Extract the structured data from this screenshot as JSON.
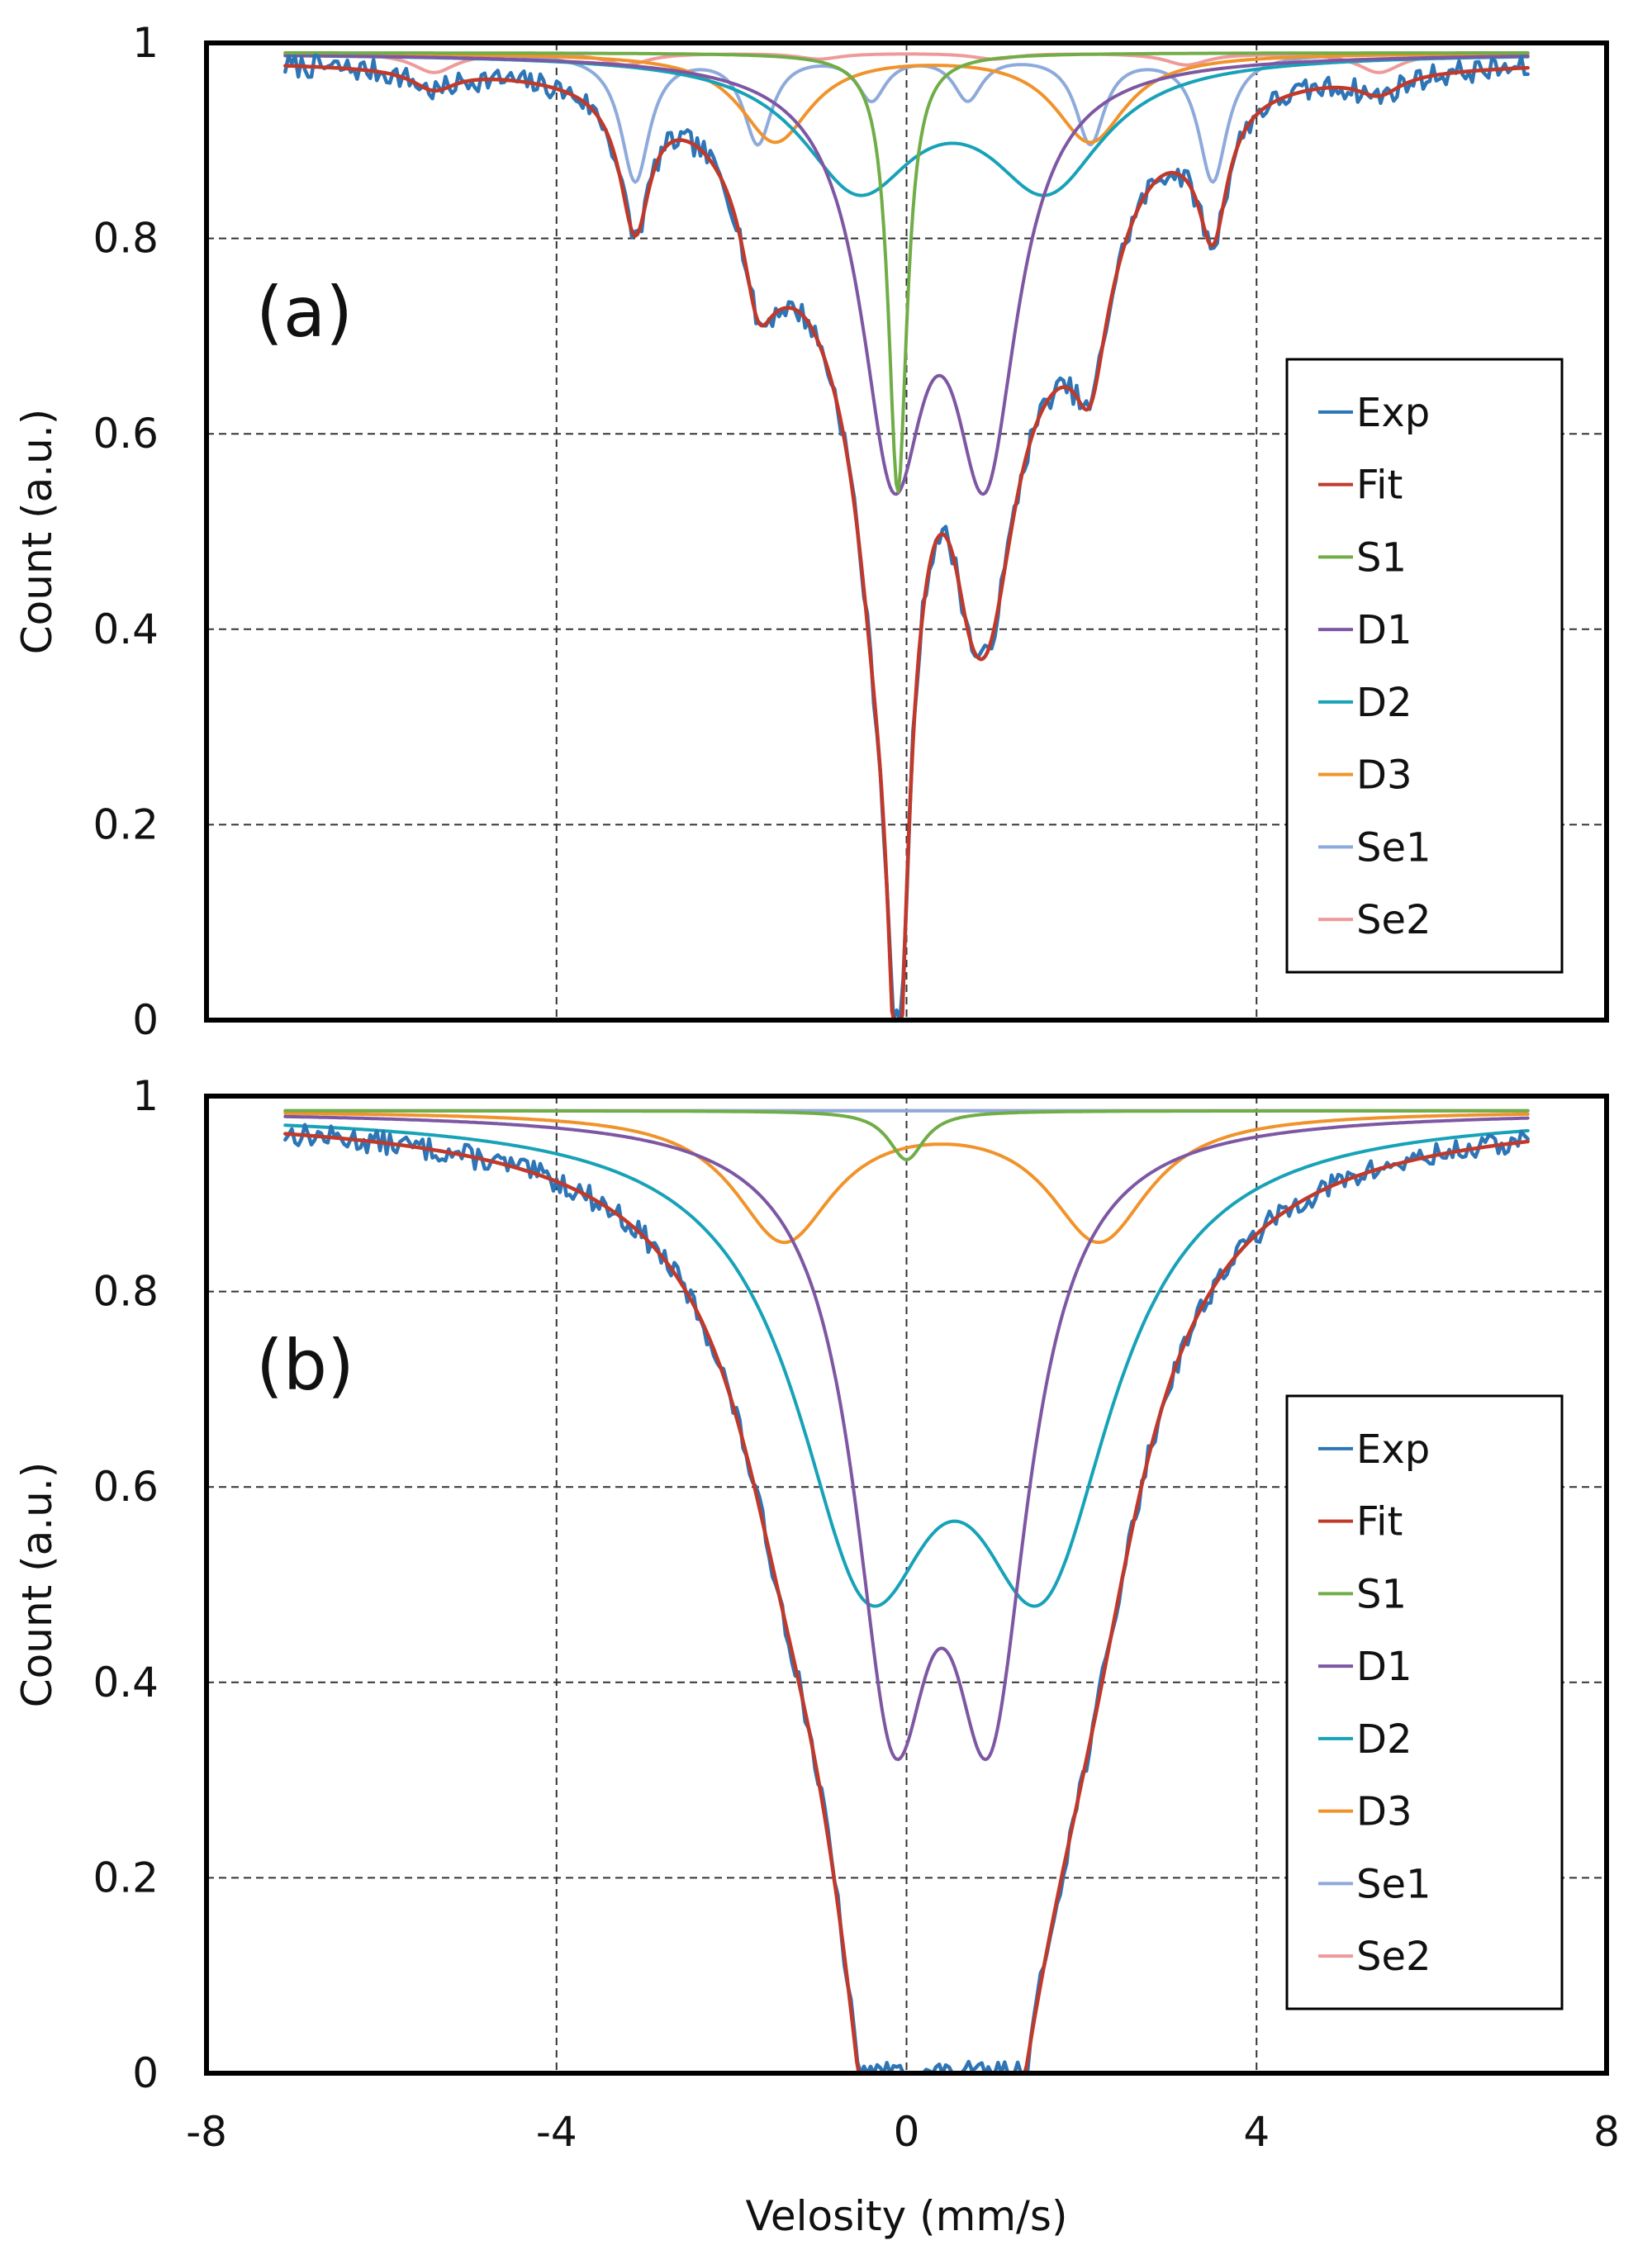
{
  "colors": {
    "Exp": "#2e75b6",
    "Fit": "#c0392b",
    "S1": "#70ad47",
    "D1": "#7e57a3",
    "D2": "#17a2b8",
    "D3": "#f0932b",
    "Se1": "#8eaadb",
    "Se2": "#ef9a9a"
  },
  "chart_data": [
    {
      "type": "line",
      "panel_label": "(a)",
      "xlabel": "Velosity (mm/s)",
      "ylabel": "Count (a.u.)",
      "xlim": [
        -8,
        8
      ],
      "ylim": [
        0,
        1
      ],
      "x_ticks": [
        "-8",
        "-4",
        "0",
        "4",
        "8"
      ],
      "y_ticks": [
        "0",
        "0.2",
        "0.4",
        "0.6",
        "0.8",
        "1"
      ],
      "grid": true,
      "legend": [
        "Exp",
        "Fit",
        "S1",
        "D1",
        "D2",
        "D3",
        "Se1",
        "Se2"
      ],
      "legend_position": "right",
      "x_range": [
        -7.1,
        7.1
      ],
      "components": [
        {
          "name": "S1",
          "baseline": 0.99,
          "peaks": [
            {
              "x0": -0.1,
              "depth": 0.45,
              "w": 0.13
            }
          ]
        },
        {
          "name": "D1",
          "baseline": 0.99,
          "peaks": [
            {
              "x0": -0.15,
              "depth": 0.39,
              "w": 0.45
            },
            {
              "x0": 0.9,
              "depth": 0.39,
              "w": 0.45
            }
          ]
        },
        {
          "name": "D2",
          "baseline": 0.99,
          "peaks": [
            {
              "x0": -0.55,
              "depth": 0.13,
              "w": 0.8
            },
            {
              "x0": 1.6,
              "depth": 0.13,
              "w": 0.8
            }
          ]
        },
        {
          "name": "D3",
          "baseline": 0.99,
          "peaks": [
            {
              "x0": -1.5,
              "depth": 0.09,
              "w": 0.5
            },
            {
              "x0": 2.1,
              "depth": 0.09,
              "w": 0.5
            }
          ]
        },
        {
          "name": "Se1",
          "baseline": 0.99,
          "peaks": [
            {
              "x0": -3.1,
              "depth": 0.13,
              "w": 0.2
            },
            {
              "x0": 3.5,
              "depth": 0.13,
              "w": 0.2
            },
            {
              "x0": -1.7,
              "depth": 0.09,
              "w": 0.2
            },
            {
              "x0": 2.1,
              "depth": 0.09,
              "w": 0.2
            },
            {
              "x0": -0.4,
              "depth": 0.045,
              "w": 0.2
            },
            {
              "x0": 0.7,
              "depth": 0.045,
              "w": 0.2
            }
          ]
        },
        {
          "name": "Se2",
          "baseline": 0.99,
          "peaks": [
            {
              "x0": -5.4,
              "depth": 0.02,
              "w": 0.3
            },
            {
              "x0": 5.4,
              "depth": 0.02,
              "w": 0.3
            },
            {
              "x0": -3.2,
              "depth": 0.012,
              "w": 0.3
            },
            {
              "x0": 3.2,
              "depth": 0.012,
              "w": 0.3
            },
            {
              "x0": -1.0,
              "depth": 0.006,
              "w": 0.3
            },
            {
              "x0": 1.0,
              "depth": 0.006,
              "w": 0.3
            }
          ]
        }
      ],
      "noise_amplitude": 0.012,
      "noise_seed": 7
    },
    {
      "type": "line",
      "panel_label": "(b)",
      "xlabel": "Velosity (mm/s)",
      "ylabel": "Count (a.u.)",
      "xlim": [
        -8,
        8
      ],
      "ylim": [
        0,
        1
      ],
      "x_ticks": [
        "-8",
        "-4",
        "0",
        "4",
        "8"
      ],
      "y_ticks": [
        "0",
        "0.2",
        "0.4",
        "0.6",
        "0.8",
        "1"
      ],
      "grid": true,
      "legend": [
        "Exp",
        "Fit",
        "S1",
        "D1",
        "D2",
        "D3",
        "Se1",
        "Se2"
      ],
      "legend_position": "right",
      "x_range": [
        -7.1,
        7.1
      ],
      "components": [
        {
          "name": "S1",
          "baseline": 0.985,
          "peaks": [
            {
              "x0": 0.0,
              "depth": 0.05,
              "w": 0.25
            }
          ]
        },
        {
          "name": "D1",
          "baseline": 0.985,
          "peaks": [
            {
              "x0": -0.15,
              "depth": 0.55,
              "w": 0.55
            },
            {
              "x0": 0.95,
              "depth": 0.55,
              "w": 0.55
            }
          ]
        },
        {
          "name": "D2",
          "baseline": 0.985,
          "peaks": [
            {
              "x0": -0.45,
              "depth": 0.42,
              "w": 1.0
            },
            {
              "x0": 1.55,
              "depth": 0.42,
              "w": 1.0
            }
          ]
        },
        {
          "name": "D3",
          "baseline": 0.985,
          "peaks": [
            {
              "x0": -1.4,
              "depth": 0.13,
              "w": 0.7
            },
            {
              "x0": 2.2,
              "depth": 0.13,
              "w": 0.7
            }
          ]
        },
        {
          "name": "Se1",
          "baseline": 0.985,
          "peaks": []
        },
        {
          "name": "Se2",
          "baseline": 0.985,
          "peaks": []
        }
      ],
      "noise_amplitude": 0.012,
      "noise_seed": 13
    }
  ]
}
